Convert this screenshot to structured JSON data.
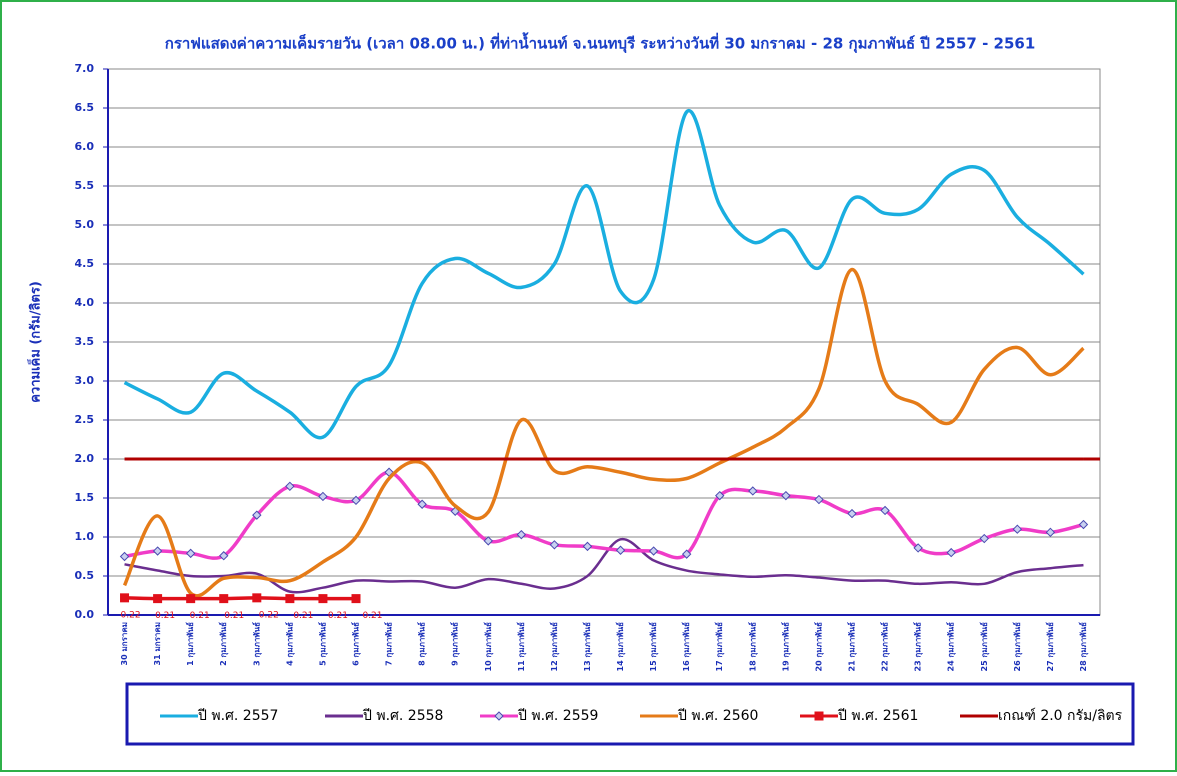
{
  "chart_data": {
    "type": "line",
    "title": "กราฟแสดงค่าความเค็มรายวัน (เวลา 08.00 น.) ที่ท่าน้ำนนท์ จ.นนทบุรี ระหว่างวันที่ 30 มกราคม - 28 กุมภาพันธ์ ปี 2557 - 2561",
    "y_label": "ความเค็ม (กรัม/ลิตร)",
    "categories": [
      "30 มกราคม",
      "31 มกราคม",
      "1 กุมภาพันธ์",
      "2 กุมภาพันธ์",
      "3 กุมภาพันธ์",
      "4 กุมภาพันธ์",
      "5 กุมภาพันธ์",
      "6 กุมภาพันธ์",
      "7 กุมภาพันธ์",
      "8 กุมภาพันธ์",
      "9 กุมภาพันธ์",
      "10 กุมภาพันธ์",
      "11 กุมภาพันธ์",
      "12 กุมภาพันธ์",
      "13 กุมภาพันธ์",
      "14 กุมภาพันธ์",
      "15 กุมภาพันธ์",
      "16 กุมภาพันธ์",
      "17 กุมภาพันธ์",
      "18 กุมภาพันธ์",
      "19 กุมภาพันธ์",
      "20 กุมภาพันธ์",
      "21 กุมภาพันธ์",
      "22 กุมภาพันธ์",
      "23 กุมภาพันธ์",
      "24 กุมภาพันธ์",
      "25 กุมภาพันธ์",
      "26 กุมภาพันธ์",
      "27 กุมภาพันธ์",
      "28 กุมภาพันธ์"
    ],
    "series": [
      {
        "name": "ปี พ.ศ. 2557",
        "color": "#1aaee0",
        "marker": "none",
        "values": [
          2.98,
          2.77,
          2.6,
          3.1,
          2.87,
          2.6,
          2.28,
          2.93,
          3.2,
          4.25,
          4.57,
          4.38,
          4.2,
          4.5,
          5.5,
          4.15,
          4.3,
          6.45,
          5.25,
          4.78,
          4.93,
          4.45,
          5.33,
          5.15,
          5.2,
          5.65,
          5.7,
          5.1,
          4.75,
          4.37
        ]
      },
      {
        "name": "ปี พ.ศ. 2558",
        "color": "#6a2e8f",
        "marker": "none",
        "values": [
          0.65,
          0.57,
          0.5,
          0.5,
          0.53,
          0.3,
          0.35,
          0.44,
          0.43,
          0.43,
          0.35,
          0.46,
          0.4,
          0.34,
          0.5,
          0.97,
          0.7,
          0.57,
          0.52,
          0.49,
          0.51,
          0.48,
          0.44,
          0.44,
          0.4,
          0.42,
          0.4,
          0.55,
          0.6,
          0.64
        ]
      },
      {
        "name": "ปี พ.ศ. 2559",
        "color": "#f03cc8",
        "marker": "diamond",
        "values": [
          0.75,
          0.82,
          0.79,
          0.76,
          1.28,
          1.65,
          1.52,
          1.47,
          1.83,
          1.42,
          1.33,
          0.95,
          1.03,
          0.9,
          0.88,
          0.83,
          0.82,
          0.78,
          1.53,
          1.59,
          1.53,
          1.48,
          1.3,
          1.34,
          0.86,
          0.8,
          0.98,
          1.1,
          1.06,
          1.16
        ]
      },
      {
        "name": "ปี พ.ศ. 2560",
        "color": "#e57b18",
        "marker": "none",
        "values": [
          0.38,
          1.27,
          0.28,
          0.47,
          0.48,
          0.44,
          0.68,
          1.0,
          1.75,
          1.95,
          1.4,
          1.32,
          2.5,
          1.85,
          1.9,
          1.83,
          1.74,
          1.75,
          1.95,
          2.15,
          2.4,
          2.9,
          4.43,
          3.0,
          2.7,
          2.47,
          3.15,
          3.43,
          3.08,
          3.42
        ]
      },
      {
        "name": "ปี พ.ศ. 2561",
        "color": "#e0101a",
        "marker": "square",
        "labels": true,
        "values": [
          0.22,
          0.21,
          0.21,
          0.21,
          0.22,
          0.21,
          0.21,
          0.21,
          null,
          null,
          null,
          null,
          null,
          null,
          null,
          null,
          null,
          null,
          null,
          null,
          null,
          null,
          null,
          null,
          null,
          null,
          null,
          null,
          null,
          null
        ]
      },
      {
        "name": "เกณฑ์ 2.0 กรัม/ลิตร",
        "color": "#b00000",
        "marker": "none",
        "values": [
          2,
          2,
          2,
          2,
          2,
          2,
          2,
          2,
          2,
          2,
          2,
          2,
          2,
          2,
          2,
          2,
          2,
          2,
          2,
          2,
          2,
          2,
          2,
          2,
          2,
          2,
          2,
          2,
          2,
          2
        ]
      }
    ],
    "ylim": [
      0,
      7
    ],
    "yticks": [
      {
        "value": 0,
        "label": "0.0"
      },
      {
        "value": 0.5,
        "label": "0.5"
      },
      {
        "value": 1,
        "label": "1.0"
      },
      {
        "value": 1.5,
        "label": "1.5"
      },
      {
        "value": 2,
        "label": "2.0"
      },
      {
        "value": 2.5,
        "label": "2.5"
      },
      {
        "value": 3,
        "label": "3.0"
      },
      {
        "value": 3.5,
        "label": "3.5"
      },
      {
        "value": 4,
        "label": "4.0"
      },
      {
        "value": 4.5,
        "label": "4.5"
      },
      {
        "value": 5,
        "label": "5.0"
      },
      {
        "value": 5.5,
        "label": "5.5"
      },
      {
        "value": 6,
        "label": "6.0"
      },
      {
        "value": 6.5,
        "label": "6.5"
      },
      {
        "value": 7,
        "label": "7.0"
      }
    ],
    "grid": true,
    "legend": "bottom"
  }
}
